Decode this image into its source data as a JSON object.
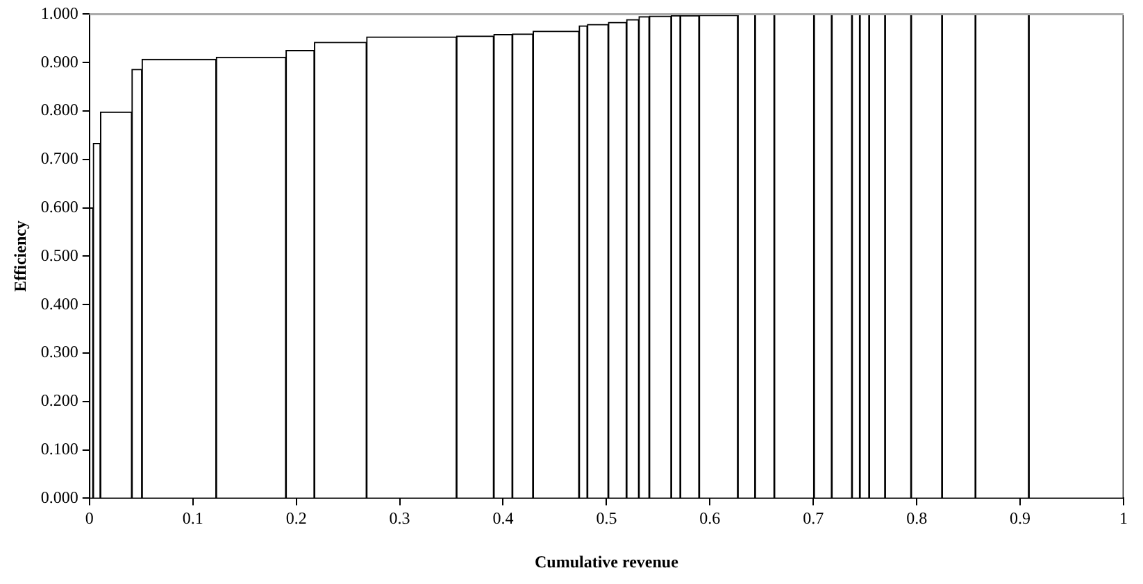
{
  "chart_data": {
    "type": "histogram",
    "xlabel": "Cumulative revenue",
    "ylabel": "Efficiency",
    "bins": [
      0,
      0.0036,
      0.0106,
      0.041,
      0.0508,
      0.1226,
      0.19,
      0.2175,
      0.268,
      0.355,
      0.391,
      0.409,
      0.429,
      0.4735,
      0.4815,
      0.5018,
      0.5194,
      0.5313,
      0.5414,
      0.5626,
      0.5714,
      0.5896,
      0.627,
      0.6437,
      0.6623,
      0.7007,
      0.7178,
      0.7374,
      0.745,
      0.754,
      0.7694,
      0.7946,
      0.8245,
      0.8568,
      0.9084,
      1
    ],
    "values": [
      0.6,
      0.733,
      0.798,
      0.886,
      0.907,
      0.911,
      0.925,
      0.942,
      0.953,
      0.955,
      0.958,
      0.959,
      0.965,
      0.976,
      0.979,
      0.983,
      0.989,
      0.995,
      0.996,
      0.997,
      0.997,
      0.998,
      1,
      1,
      1,
      1,
      1,
      1,
      1,
      1,
      1,
      1,
      1,
      1,
      1
    ],
    "color": "#ffffff",
    "xlim": [
      0,
      1
    ],
    "xticks": [
      0,
      0.1,
      0.2,
      0.3,
      0.4,
      0.5,
      0.6,
      0.7,
      0.8,
      0.9,
      1
    ],
    "ylim": [
      0,
      1
    ],
    "yticks": [
      {
        "value": 0,
        "label": "0.000"
      },
      {
        "value": 0.1,
        "label": "0.100"
      },
      {
        "value": 0.2,
        "label": "0.200"
      },
      {
        "value": 0.3,
        "label": "0.300"
      },
      {
        "value": 0.4,
        "label": "0.400"
      },
      {
        "value": 0.5,
        "label": "0.500"
      },
      {
        "value": 0.6,
        "label": "0.600"
      },
      {
        "value": 0.7,
        "label": "0.700"
      },
      {
        "value": 0.8,
        "label": "0.800"
      },
      {
        "value": 0.9,
        "label": "0.900"
      },
      {
        "value": 1,
        "label": "1.000"
      }
    ],
    "grid": false,
    "legend": false
  }
}
